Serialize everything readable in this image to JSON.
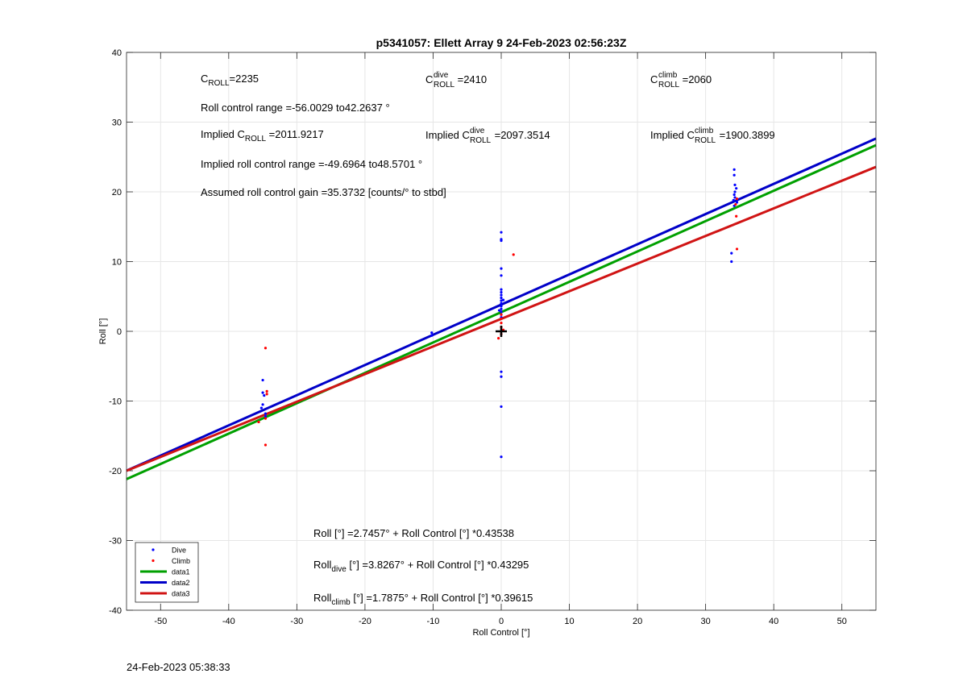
{
  "footer_timestamp": "24-Feb-2023 05:38:33",
  "colors": {
    "dive": "#0000ff",
    "climb": "#ff0000",
    "data1": "#00a000",
    "data2": "#0000c8",
    "data3": "#d01414",
    "grid": "#e6e6e6"
  },
  "annotations": {
    "c_roll": {
      "base": "C",
      "sub": "ROLL",
      "value": "=2235"
    },
    "c_roll_dive": {
      "base": "C",
      "sup": "dive",
      "sub": "ROLL",
      "value": " =2410"
    },
    "c_roll_climb": {
      "base": "C",
      "sup": "climb",
      "sub": "ROLL",
      "value": " =2060"
    },
    "roll_control_range": "Roll control range =-56.0029 to42.2637 °",
    "implied_c_roll": {
      "prefix": "Implied C",
      "sub": "ROLL",
      "value": " =2011.9217"
    },
    "implied_c_roll_dive": {
      "prefix": "Implied C",
      "sup": "dive",
      "sub": "ROLL",
      "value": " =2097.3514"
    },
    "implied_c_roll_climb": {
      "prefix": "Implied C",
      "sup": "climb",
      "sub": "ROLL",
      "value": " =1900.3899"
    },
    "implied_range": "Implied roll control range =-49.6964 to48.5701 °",
    "gain": "Assumed roll control gain =35.3732 [counts/° to stbd]",
    "fit_all": "Roll [°] =2.7457° + Roll Control [°] *0.43538",
    "fit_dive": {
      "base": "Roll",
      "sub": "dive",
      "rest": " [°] =3.8267° + Roll Control [°] *0.43295"
    },
    "fit_climb": {
      "base": "Roll",
      "sub": "climb",
      "rest": " [°] =1.7875° + Roll Control [°] *0.39615"
    }
  },
  "chart_data": {
    "type": "scatter",
    "title": "p5341057: Ellett Array 9 24-Feb-2023 02:56:23Z",
    "xlabel": "Roll Control [°]",
    "ylabel": "Roll [°]",
    "xlim": [
      -55,
      55
    ],
    "ylim": [
      -40,
      40
    ],
    "xticks": [
      -50,
      -40,
      -30,
      -20,
      -10,
      0,
      10,
      20,
      30,
      40,
      50
    ],
    "yticks": [
      -40,
      -30,
      -20,
      -10,
      0,
      10,
      20,
      30,
      40
    ],
    "grid": true,
    "legend_position": "bottom-left",
    "legend": [
      "Dive",
      "Climb",
      "data1",
      "data2",
      "data3"
    ],
    "series": [
      {
        "name": "Dive",
        "kind": "points",
        "points": [
          [
            -35,
            -7.0
          ],
          [
            -35,
            -8.8
          ],
          [
            -34.8,
            -9.2
          ],
          [
            -35,
            -10.5
          ],
          [
            -35.2,
            -11.0
          ],
          [
            -34.6,
            -11.8
          ],
          [
            -34.6,
            -12.2
          ],
          [
            -10.2,
            -0.2
          ],
          [
            -10.2,
            -0.6
          ],
          [
            0,
            14.2
          ],
          [
            0,
            13.2
          ],
          [
            0,
            13.0
          ],
          [
            0,
            9.0
          ],
          [
            0,
            8.0
          ],
          [
            0,
            6.0
          ],
          [
            0,
            5.6
          ],
          [
            0,
            5.2
          ],
          [
            0,
            4.8
          ],
          [
            0,
            4.4
          ],
          [
            0,
            4.0
          ],
          [
            0,
            3.6
          ],
          [
            0,
            3.2
          ],
          [
            0,
            2.8
          ],
          [
            0,
            2.4
          ],
          [
            0,
            2.0
          ],
          [
            -0.3,
            3.0
          ],
          [
            0.3,
            4.5
          ],
          [
            0,
            -5.8
          ],
          [
            0,
            -6.5
          ],
          [
            0,
            -10.8
          ],
          [
            0,
            -18.0
          ],
          [
            34.2,
            23.2
          ],
          [
            34.2,
            22.4
          ],
          [
            34.3,
            21.0
          ],
          [
            34.5,
            20.5
          ],
          [
            34.3,
            20.0
          ],
          [
            34.2,
            19.6
          ],
          [
            34.3,
            19.2
          ],
          [
            34.1,
            18.8
          ],
          [
            34.6,
            18.5
          ],
          [
            34.2,
            18.0
          ],
          [
            33.8,
            11.2
          ],
          [
            33.8,
            10.0
          ]
        ]
      },
      {
        "name": "Climb",
        "kind": "points",
        "points": [
          [
            -34.6,
            -2.4
          ],
          [
            -34.4,
            -8.6
          ],
          [
            -34.4,
            -9.0
          ],
          [
            -34.6,
            -12.5
          ],
          [
            -35.6,
            -13.0
          ],
          [
            -34.6,
            -16.3
          ],
          [
            1.8,
            11.0
          ],
          [
            0,
            2.4
          ],
          [
            0,
            1.8
          ],
          [
            0,
            1.2
          ],
          [
            0,
            0.6
          ],
          [
            0,
            -0.4
          ],
          [
            -0.4,
            -1.0
          ],
          [
            0.3,
            0.2
          ],
          [
            34.6,
            19.0
          ],
          [
            34.4,
            18.2
          ],
          [
            34.5,
            16.5
          ],
          [
            34.6,
            11.8
          ]
        ]
      },
      {
        "name": "data1",
        "kind": "line",
        "intercept": 2.7457,
        "slope": 0.43538
      },
      {
        "name": "data2",
        "kind": "line",
        "intercept": 3.8267,
        "slope": 0.43295
      },
      {
        "name": "data3",
        "kind": "line",
        "intercept": 1.7875,
        "slope": 0.39615
      },
      {
        "name": "",
        "kind": "marker",
        "symbol": "+",
        "points": [
          [
            0,
            0
          ]
        ]
      }
    ]
  }
}
